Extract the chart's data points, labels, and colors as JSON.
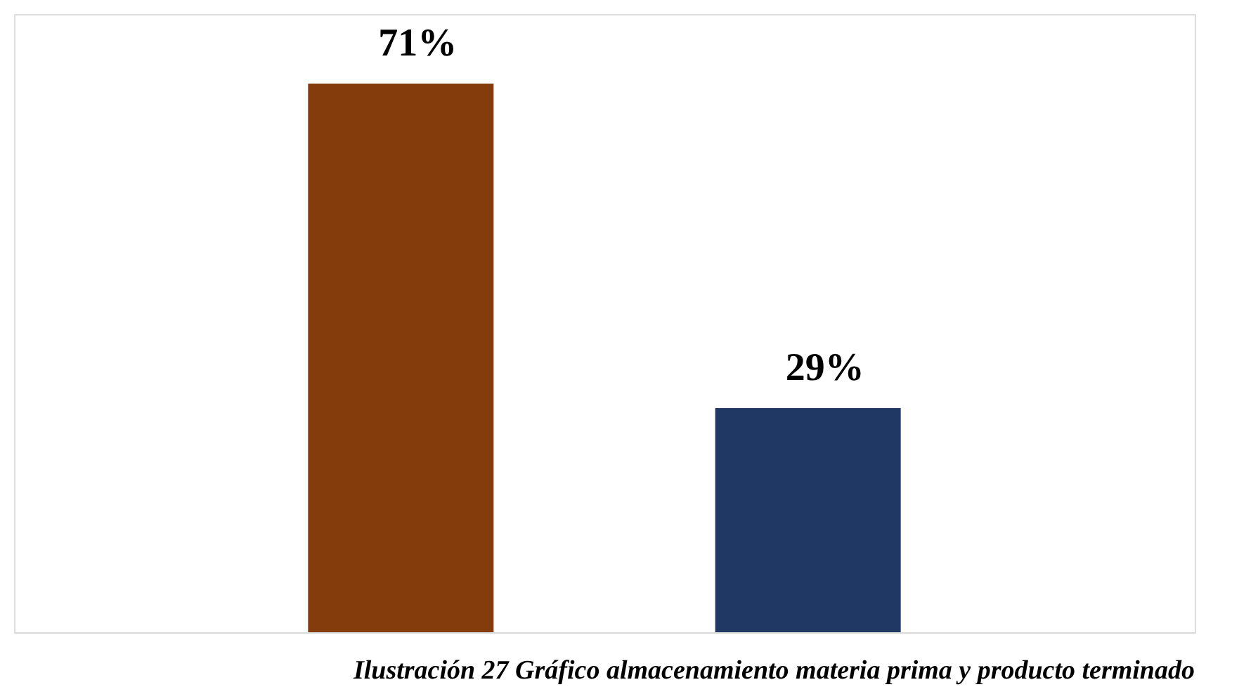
{
  "chart_data": {
    "type": "bar",
    "categories": [
      null,
      null
    ],
    "values": [
      71,
      29
    ],
    "colors": [
      "#843c0c",
      "#203864"
    ],
    "data_labels": true,
    "value_labels": [
      "71%",
      "29%"
    ],
    "grid": false,
    "annotations": [
      "Ilustración 27 Gráfico almacenamiento materia prima y producto terminado"
    ]
  }
}
